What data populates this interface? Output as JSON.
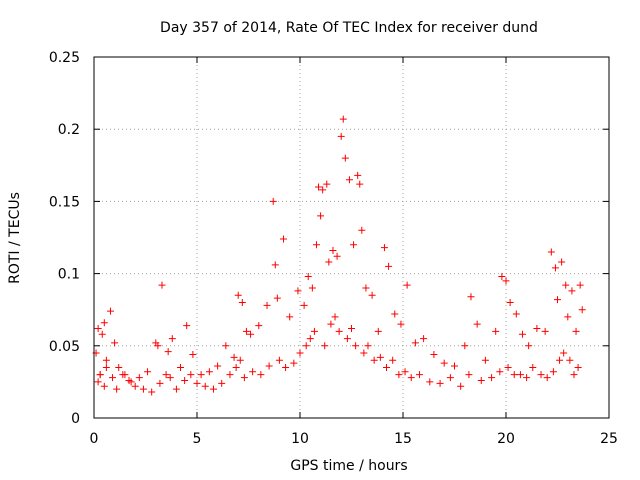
{
  "chart_data": {
    "type": "scatter",
    "title": "Day 357 of 2014, Rate Of TEC Index for receiver dund",
    "xlabel": "GPS time / hours",
    "ylabel": "ROTI / TECUs",
    "xlim": [
      0,
      25
    ],
    "ylim": [
      0,
      0.25
    ],
    "xticks": [
      0,
      5,
      10,
      15,
      20,
      25
    ],
    "xtick_labels": [
      "0",
      "5",
      "10",
      "15",
      "20",
      "25"
    ],
    "yticks": [
      0,
      0.05,
      0.1,
      0.15,
      0.2,
      0.25
    ],
    "ytick_labels": [
      "0",
      "0.05",
      "0.1",
      "0.15",
      "0.2",
      "0.25"
    ],
    "grid": true,
    "marker": "+",
    "series": [
      {
        "name": "ROTI",
        "color": "#ff0000",
        "x": [
          0.1,
          0.2,
          0.3,
          0.4,
          0.5,
          0.6,
          0.8,
          1.0,
          1.2,
          1.5,
          1.8,
          2.2,
          2.6,
          3.0,
          3.1,
          3.3,
          3.6,
          3.8,
          4.2,
          4.5,
          4.8,
          5.2,
          5.6,
          6.0,
          6.4,
          6.8,
          7.0,
          7.2,
          7.4,
          7.6,
          8.0,
          8.4,
          8.7,
          8.8,
          8.9,
          9.2,
          9.5,
          9.9,
          10.2,
          10.4,
          10.6,
          10.8,
          10.9,
          11.0,
          11.1,
          11.3,
          11.4,
          11.6,
          11.8,
          12.0,
          12.1,
          12.2,
          12.4,
          12.6,
          12.8,
          12.9,
          13.0,
          13.2,
          13.5,
          13.8,
          14.1,
          14.3,
          14.6,
          14.9,
          15.2,
          15.6,
          16.0,
          16.5,
          17.0,
          17.5,
          18.0,
          18.3,
          18.6,
          19.0,
          19.5,
          19.8,
          20.0,
          20.2,
          20.5,
          20.8,
          21.1,
          21.5,
          21.9,
          22.2,
          22.4,
          22.5,
          22.7,
          22.9,
          23.0,
          23.2,
          23.4,
          23.6,
          23.7,
          0.2,
          0.3,
          0.5,
          0.6,
          0.9,
          1.1,
          1.4,
          1.7,
          2.0,
          2.4,
          2.8,
          3.2,
          3.5,
          3.7,
          4.0,
          4.4,
          4.7,
          5.0,
          5.4,
          5.8,
          6.2,
          6.6,
          6.9,
          7.1,
          7.3,
          7.7,
          8.1,
          8.5,
          9.0,
          9.3,
          9.7,
          10.0,
          10.3,
          10.5,
          10.7,
          11.2,
          11.5,
          11.7,
          11.9,
          12.3,
          12.5,
          12.7,
          13.1,
          13.3,
          13.6,
          13.9,
          14.2,
          14.5,
          14.8,
          15.1,
          15.4,
          15.8,
          16.3,
          16.8,
          17.3,
          17.8,
          18.2,
          18.8,
          19.3,
          19.7,
          20.1,
          20.4,
          20.7,
          21.0,
          21.3,
          21.7,
          22.0,
          22.3,
          22.6,
          22.8,
          23.1,
          23.3,
          23.5
        ],
        "y": [
          0.045,
          0.062,
          0.03,
          0.058,
          0.066,
          0.04,
          0.074,
          0.052,
          0.035,
          0.03,
          0.025,
          0.028,
          0.032,
          0.052,
          0.05,
          0.092,
          0.046,
          0.055,
          0.035,
          0.064,
          0.044,
          0.03,
          0.032,
          0.036,
          0.05,
          0.042,
          0.085,
          0.08,
          0.06,
          0.058,
          0.064,
          0.078,
          0.15,
          0.106,
          0.083,
          0.124,
          0.07,
          0.088,
          0.078,
          0.098,
          0.09,
          0.12,
          0.16,
          0.14,
          0.158,
          0.162,
          0.108,
          0.116,
          0.112,
          0.195,
          0.207,
          0.18,
          0.165,
          0.12,
          0.168,
          0.162,
          0.13,
          0.09,
          0.085,
          0.06,
          0.118,
          0.105,
          0.072,
          0.065,
          0.092,
          0.052,
          0.055,
          0.044,
          0.038,
          0.036,
          0.05,
          0.084,
          0.065,
          0.04,
          0.06,
          0.098,
          0.095,
          0.08,
          0.072,
          0.058,
          0.05,
          0.062,
          0.06,
          0.115,
          0.104,
          0.082,
          0.108,
          0.092,
          0.07,
          0.088,
          0.06,
          0.092,
          0.075,
          0.025,
          0.03,
          0.022,
          0.035,
          0.028,
          0.02,
          0.03,
          0.026,
          0.022,
          0.02,
          0.018,
          0.024,
          0.03,
          0.028,
          0.02,
          0.026,
          0.03,
          0.024,
          0.022,
          0.02,
          0.024,
          0.03,
          0.035,
          0.04,
          0.028,
          0.032,
          0.03,
          0.036,
          0.04,
          0.035,
          0.038,
          0.045,
          0.05,
          0.055,
          0.06,
          0.05,
          0.065,
          0.07,
          0.06,
          0.055,
          0.062,
          0.05,
          0.045,
          0.05,
          0.04,
          0.042,
          0.035,
          0.04,
          0.03,
          0.032,
          0.028,
          0.03,
          0.025,
          0.024,
          0.028,
          0.022,
          0.03,
          0.026,
          0.028,
          0.032,
          0.035,
          0.03,
          0.03,
          0.028,
          0.035,
          0.03,
          0.028,
          0.032,
          0.04,
          0.045,
          0.04,
          0.03,
          0.035
        ]
      }
    ]
  }
}
